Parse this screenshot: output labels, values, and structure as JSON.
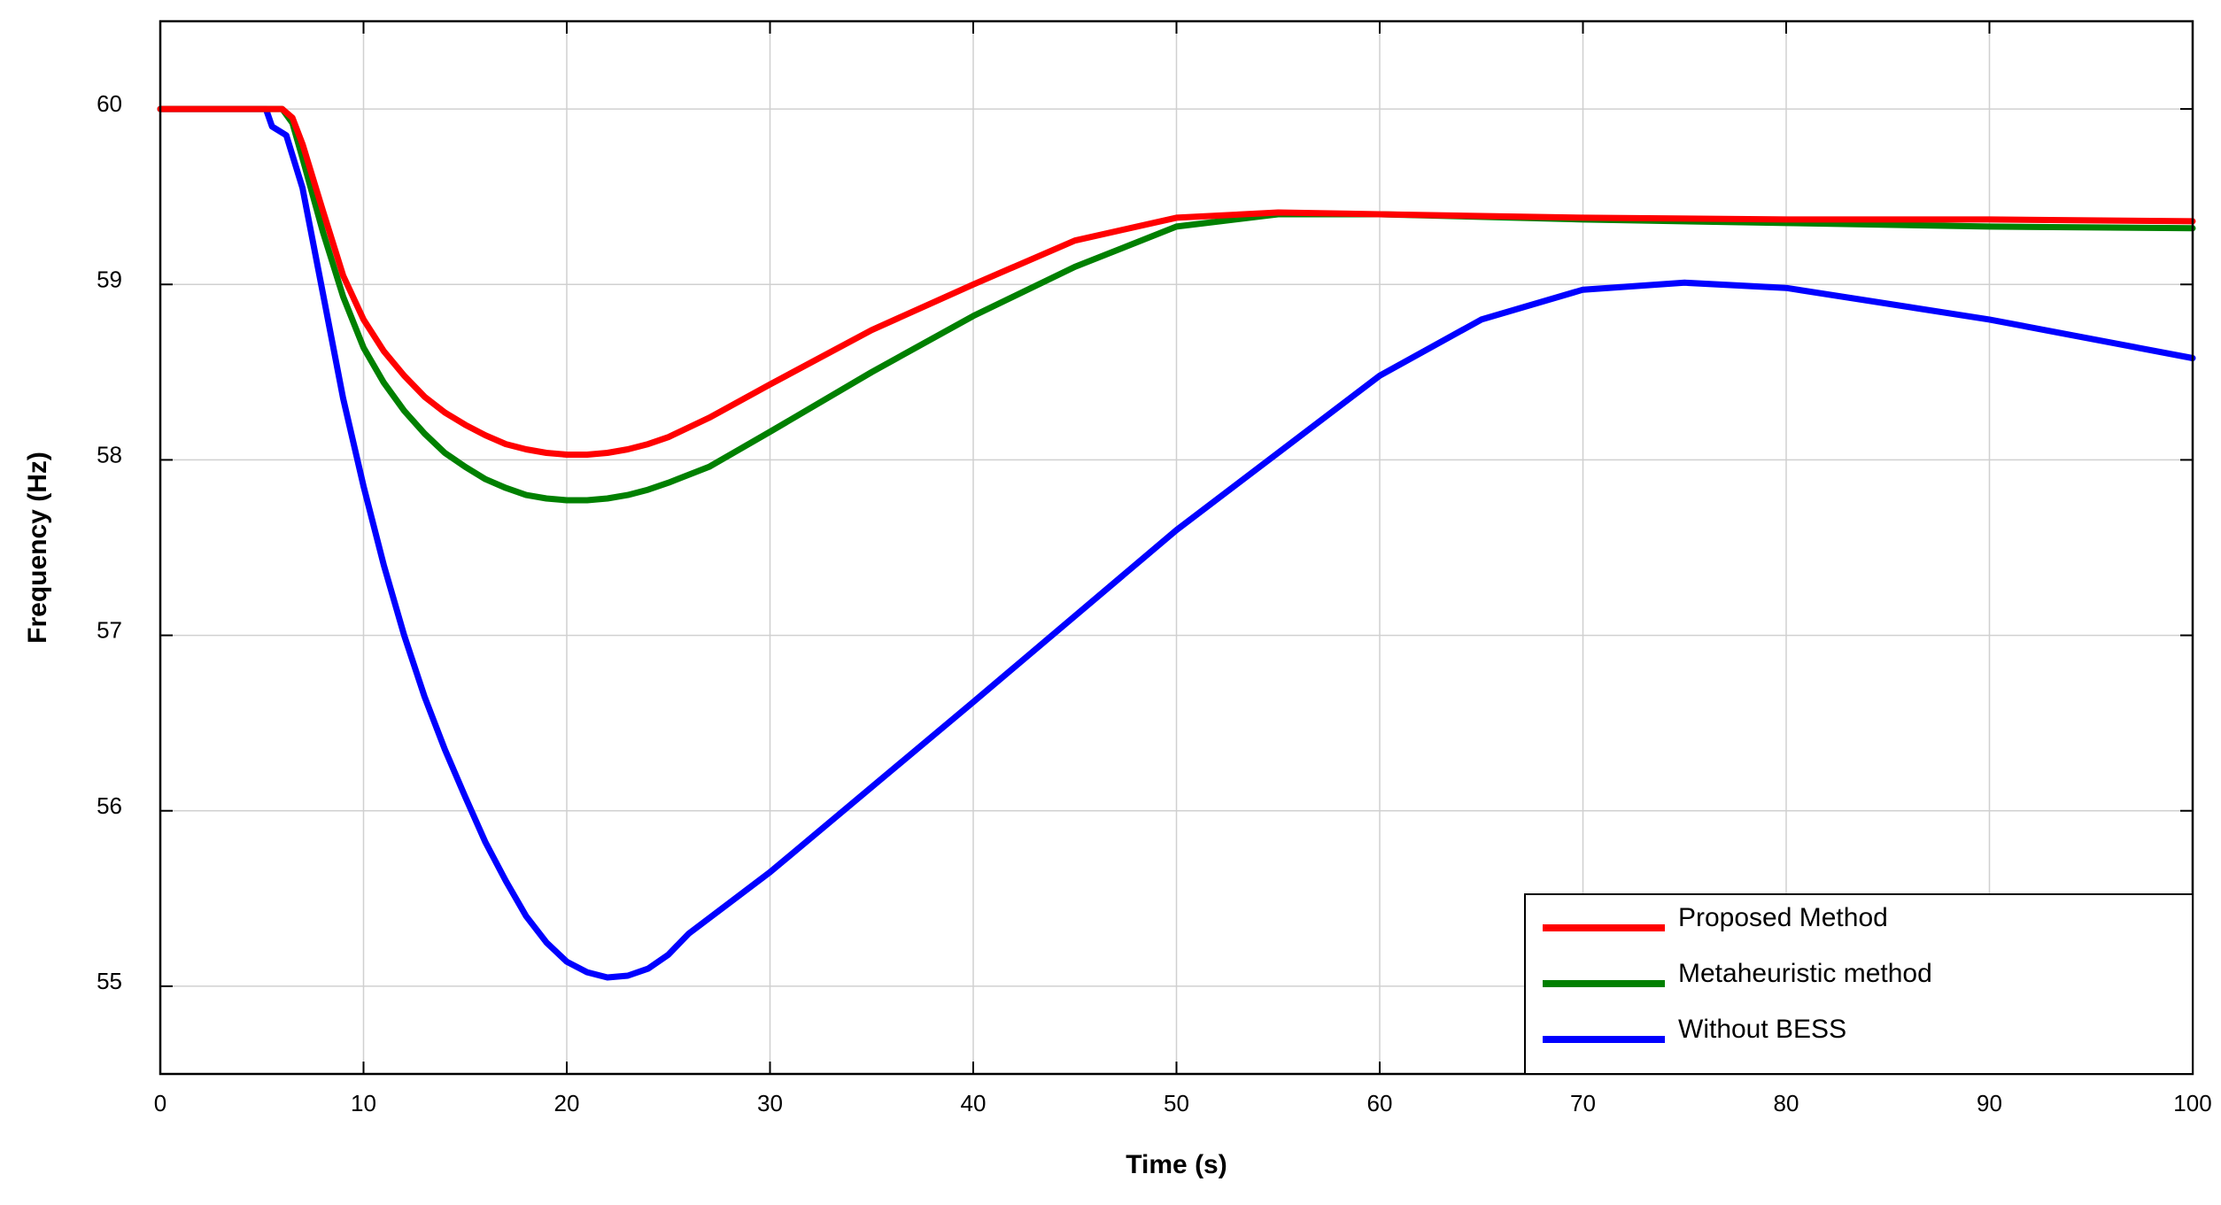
{
  "chart_data": {
    "type": "line",
    "title": "",
    "xlabel": "Time (s)",
    "ylabel": "Frequency (Hz)",
    "xlim": [
      0,
      100
    ],
    "ylim": [
      54.5,
      60.5
    ],
    "xticks": [
      0,
      10,
      20,
      30,
      40,
      50,
      60,
      70,
      80,
      90,
      100
    ],
    "yticks": [
      55,
      56,
      57,
      58,
      59,
      60
    ],
    "grid": true,
    "legend_position": "bottom-right",
    "series": [
      {
        "name": "Proposed Method",
        "color": "#ff0000",
        "x": [
          0,
          6.0,
          6.5,
          7,
          8,
          9,
          10,
          11,
          12,
          13,
          14,
          15,
          16,
          17,
          18,
          19,
          20,
          21,
          22,
          23,
          24,
          25,
          27,
          30,
          35,
          40,
          45,
          50,
          55,
          60,
          70,
          80,
          90,
          100
        ],
        "y": [
          60,
          60,
          59.95,
          59.8,
          59.42,
          59.05,
          58.8,
          58.62,
          58.48,
          58.36,
          58.27,
          58.2,
          58.14,
          58.09,
          58.06,
          58.04,
          58.03,
          58.03,
          58.04,
          58.06,
          58.09,
          58.13,
          58.24,
          58.43,
          58.74,
          59.0,
          59.25,
          59.38,
          59.41,
          59.4,
          59.38,
          59.37,
          59.37,
          59.36
        ]
      },
      {
        "name": "Metaheuristic method",
        "color": "#008000",
        "x": [
          0,
          6.0,
          6.5,
          7,
          8,
          9,
          10,
          11,
          12,
          13,
          14,
          15,
          16,
          17,
          18,
          19,
          20,
          21,
          22,
          23,
          24,
          25,
          27,
          30,
          35,
          40,
          45,
          50,
          55,
          60,
          70,
          80,
          90,
          100
        ],
        "y": [
          60,
          60,
          59.92,
          59.72,
          59.3,
          58.93,
          58.64,
          58.44,
          58.28,
          58.15,
          58.04,
          57.96,
          57.89,
          57.84,
          57.8,
          57.78,
          57.77,
          57.77,
          57.78,
          57.8,
          57.83,
          57.87,
          57.96,
          58.16,
          58.5,
          58.82,
          59.1,
          59.33,
          59.4,
          59.4,
          59.37,
          59.35,
          59.33,
          59.32
        ]
      },
      {
        "name": "Without BESS",
        "color": "#0000ff",
        "x": [
          0,
          5.2,
          5.5,
          6.2,
          7,
          8,
          9,
          10,
          11,
          12,
          13,
          14,
          15,
          16,
          17,
          18,
          19,
          20,
          21,
          22,
          23,
          24,
          25,
          26,
          30,
          40,
          50,
          60,
          65,
          70,
          75,
          80,
          90,
          100
        ],
        "y": [
          60,
          60,
          59.9,
          59.85,
          59.55,
          58.95,
          58.35,
          57.85,
          57.4,
          57.0,
          56.65,
          56.35,
          56.08,
          55.82,
          55.6,
          55.4,
          55.25,
          55.14,
          55.08,
          55.05,
          55.06,
          55.1,
          55.18,
          55.3,
          55.65,
          56.62,
          57.6,
          58.48,
          58.8,
          58.97,
          59.01,
          58.98,
          58.8,
          58.58
        ]
      }
    ]
  }
}
